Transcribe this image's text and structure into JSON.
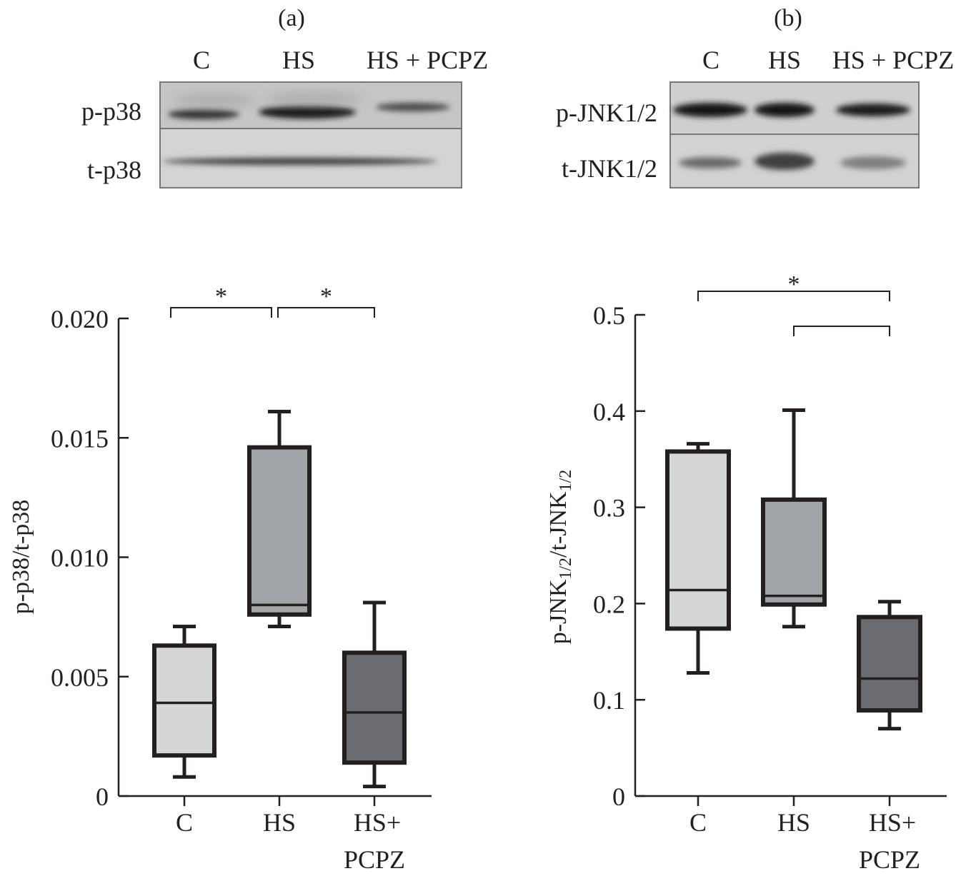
{
  "panels": [
    {
      "label": "(a)",
      "lane_labels": [
        "C",
        "HS",
        "HS + PCPZ"
      ],
      "blot_rows": [
        "p-p38",
        "t-p38"
      ]
    },
    {
      "label": "(b)",
      "lane_labels": [
        "C",
        "HS",
        "HS + PCPZ"
      ],
      "blot_rows": [
        "p-JNK1/2",
        "t-JNK1/2"
      ]
    }
  ],
  "colors": {
    "C": "#d5d6d8",
    "HS": "#a2a5a8",
    "HS+PCPZ": "#6a6c6f",
    "outline": "#231f20"
  },
  "chart_data": [
    {
      "type": "box",
      "categories": [
        "C",
        "HS",
        "HS+\nPCPZ"
      ],
      "ylabel": "p-p38/t-p38",
      "ylim": [
        0,
        0.02
      ],
      "yticks": [
        "0",
        "0.005",
        "0.010",
        "0.015",
        "0.020"
      ],
      "ytick_values": [
        0,
        0.005,
        0.01,
        0.015,
        0.02
      ],
      "boxes": [
        {
          "min": 0.0008,
          "q1": 0.0017,
          "median": 0.0039,
          "q3": 0.0063,
          "max": 0.0071
        },
        {
          "min": 0.0071,
          "q1": 0.0076,
          "median": 0.008,
          "q3": 0.0146,
          "max": 0.0161
        },
        {
          "min": 0.0004,
          "q1": 0.0014,
          "median": 0.0035,
          "q3": 0.006,
          "max": 0.0081
        }
      ],
      "significance": [
        {
          "from": 0,
          "to": 1,
          "label": "*"
        },
        {
          "from": 1,
          "to": 2,
          "label": "*"
        }
      ],
      "grid": false
    },
    {
      "type": "box",
      "categories": [
        "C",
        "HS",
        "HS+\nPCPZ"
      ],
      "ylabel": "p-JNK1/2/t-JNK1/2",
      "ylim": [
        0,
        0.5
      ],
      "yticks": [
        "0",
        "0.1",
        "0.2",
        "0.3",
        "0.4",
        "0.5"
      ],
      "ytick_values": [
        0,
        0.1,
        0.2,
        0.3,
        0.4,
        0.5
      ],
      "boxes": [
        {
          "min": 0.128,
          "q1": 0.174,
          "median": 0.214,
          "q3": 0.358,
          "max": 0.366
        },
        {
          "min": 0.176,
          "q1": 0.199,
          "median": 0.208,
          "q3": 0.308,
          "max": 0.401
        },
        {
          "min": 0.07,
          "q1": 0.089,
          "median": 0.122,
          "q3": 0.186,
          "max": 0.202
        }
      ],
      "significance": [
        {
          "from": 0,
          "to": 2,
          "label": "*"
        },
        {
          "from": 1,
          "to": 2,
          "label": ""
        }
      ],
      "grid": false
    }
  ]
}
